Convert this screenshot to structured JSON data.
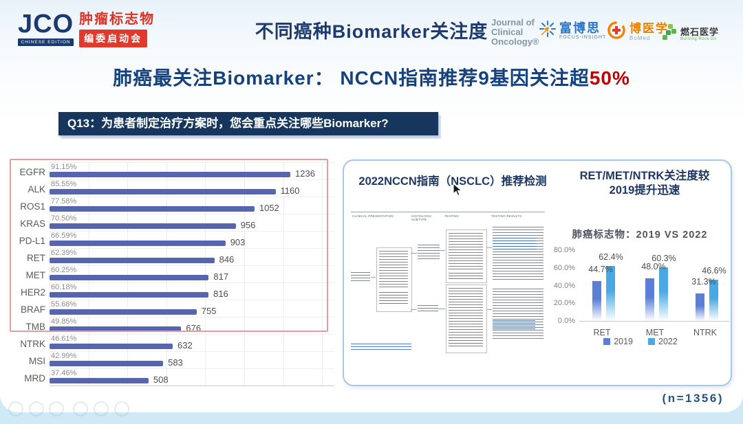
{
  "header": {
    "title": "不同癌种Biomarker关注度",
    "jco_logo": {
      "acronym": "JCO",
      "edition": "CHINESE EDITION",
      "line1": "肿瘤标志物",
      "line2": "编委启动会"
    },
    "journal_logo": {
      "line1": "Journal of",
      "line2": "Clinical",
      "line3": "Oncology®"
    },
    "sponsors": {
      "focus_insight": {
        "name": "富博思",
        "sub": "FOCUS-INSIGHT"
      },
      "bomed": {
        "name": "博医学",
        "sub": "BoMed"
      },
      "burning_rock": {
        "name": "燃石医学",
        "sub": "Burning Rock Dx"
      }
    }
  },
  "headline": {
    "main": "肺癌最关注Biomarker： NCCN指南推荐9基因关注超",
    "highlight": "50%"
  },
  "question": {
    "text": "Q13：为患者制定治疗方案时，您会重点关注哪些Biomarker?"
  },
  "panel": {
    "left_title": "2022NCCN指南（NSCLC）推荐检测",
    "right_title_line1": "RET/MET/NTRK关注度较",
    "right_title_line2": "2019提升迅速",
    "flowchart_columns": [
      "CLINICAL PRESENTATION",
      "HISTOLOGIC SUBTYPE",
      "TESTING",
      "TESTING RESULTS"
    ]
  },
  "sample_note": "(n=1356)",
  "chart_data": [
    {
      "type": "bar",
      "orientation": "horizontal",
      "title": "Q13：为患者制定治疗方案时，您会重点关注哪些Biomarker?",
      "categories": [
        "EGFR",
        "ALK",
        "ROS1",
        "KRAS",
        "PD-L1",
        "RET",
        "MET",
        "HER2",
        "BRAF",
        "TMB",
        "NTRK",
        "MSI",
        "MRD"
      ],
      "percent_labels": [
        "91.15%",
        "85.55%",
        "77.58%",
        "70.50%",
        "66.59%",
        "62.39%",
        "60.25%",
        "60.18%",
        "55.68%",
        "49.85%",
        "46.61%",
        "42.99%",
        "37.46%"
      ],
      "counts": [
        1236,
        1160,
        1052,
        956,
        903,
        846,
        817,
        816,
        755,
        676,
        632,
        583,
        508
      ],
      "xlim": [
        0,
        1400
      ],
      "grid": true,
      "bar_color": "#5565ae",
      "highlight_box_rows": 10
    },
    {
      "type": "bar",
      "title": "肺癌标志物：2019 VS 2022",
      "categories": [
        "RET",
        "MET",
        "NTRK"
      ],
      "series": [
        {
          "name": "2019",
          "values": [
            44.7,
            48.0,
            31.3
          ],
          "color": "#5b7fd6"
        },
        {
          "name": "2022",
          "values": [
            62.4,
            60.3,
            46.6
          ],
          "color": "#4aa9e2"
        }
      ],
      "y_ticks": [
        "0.0%",
        "20.0%",
        "40.0%",
        "60.0%",
        "80.0%"
      ],
      "ylim": [
        0,
        80
      ],
      "grid": false,
      "legend_position": "bottom"
    }
  ]
}
